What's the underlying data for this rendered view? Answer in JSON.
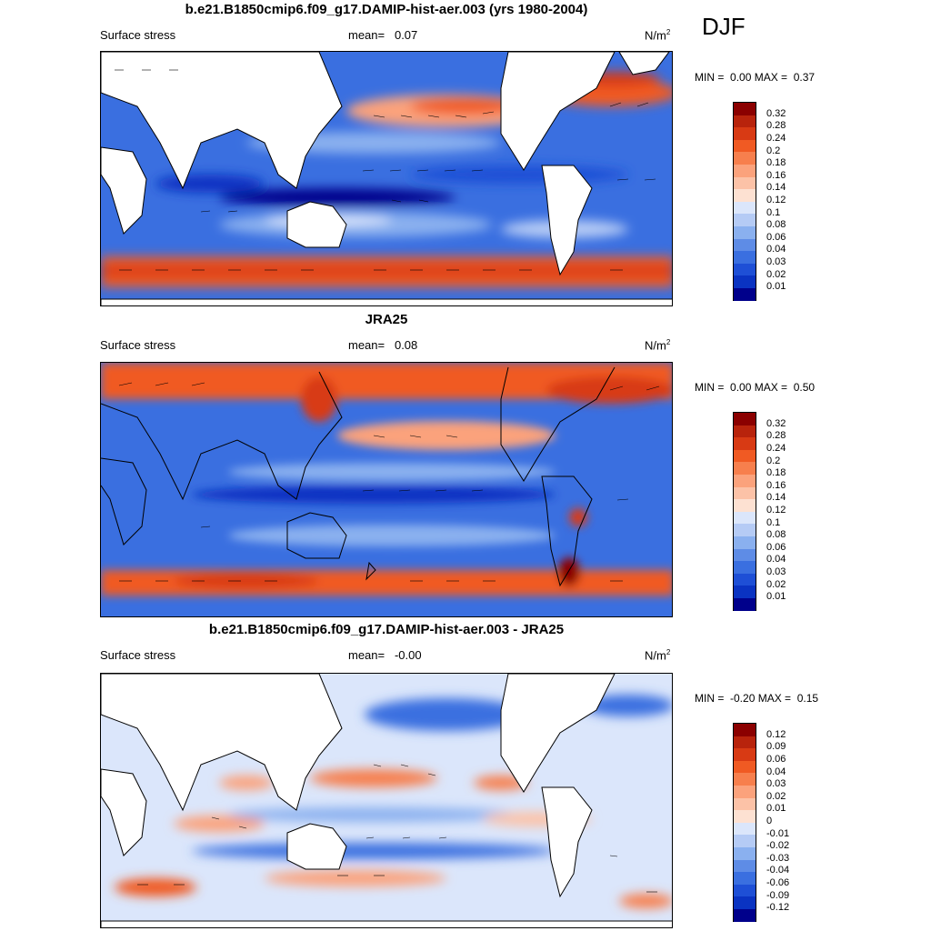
{
  "season": "DJF",
  "panels": [
    {
      "title": "b.e21.B1850cmip6.f09_g17.DAMIP-hist-aer.003 (yrs 1980-2004)",
      "variable": "Surface stress",
      "mean_label": "mean=",
      "mean_value": "0.07",
      "unit_base": "N/m",
      "unit_exp": "2",
      "min_label": "MIN =",
      "min_value": "0.00",
      "max_label": "MAX =",
      "max_value": "0.37",
      "levels": [
        "0.32",
        "0.28",
        "0.24",
        "0.2",
        "0.18",
        "0.16",
        "0.14",
        "0.12",
        "0.1",
        "0.08",
        "0.06",
        "0.04",
        "0.03",
        "0.02",
        "0.01"
      ],
      "colors": [
        "#8b0000",
        "#b8230c",
        "#d83a14",
        "#f05a23",
        "#f77f4d",
        "#fba27c",
        "#fcc2a7",
        "#fde1d2",
        "#dbe6fb",
        "#b5cbf5",
        "#8ab0ef",
        "#5e8ce6",
        "#3a6fe0",
        "#1e4fd6",
        "#0a33c2",
        "#00008b"
      ]
    },
    {
      "title": "JRA25",
      "variable": "Surface stress",
      "mean_label": "mean=",
      "mean_value": "0.08",
      "unit_base": "N/m",
      "unit_exp": "2",
      "min_label": "MIN =",
      "min_value": "0.00",
      "max_label": "MAX =",
      "max_value": "0.50",
      "levels": [
        "0.32",
        "0.28",
        "0.24",
        "0.2",
        "0.18",
        "0.16",
        "0.14",
        "0.12",
        "0.1",
        "0.08",
        "0.06",
        "0.04",
        "0.03",
        "0.02",
        "0.01"
      ],
      "colors": [
        "#8b0000",
        "#b8230c",
        "#d83a14",
        "#f05a23",
        "#f77f4d",
        "#fba27c",
        "#fcc2a7",
        "#fde1d2",
        "#dbe6fb",
        "#b5cbf5",
        "#8ab0ef",
        "#5e8ce6",
        "#3a6fe0",
        "#1e4fd6",
        "#0a33c2",
        "#00008b"
      ]
    },
    {
      "title": "b.e21.B1850cmip6.f09_g17.DAMIP-hist-aer.003 - JRA25",
      "variable": "Surface stress",
      "mean_label": "mean=",
      "mean_value": "-0.00",
      "unit_base": "N/m",
      "unit_exp": "2",
      "min_label": "MIN =",
      "min_value": "-0.20",
      "max_label": "MAX =",
      "max_value": "0.15",
      "levels": [
        "0.12",
        "0.09",
        "0.06",
        "0.04",
        "0.03",
        "0.02",
        "0.01",
        "0",
        "-0.01",
        "-0.02",
        "-0.03",
        "-0.04",
        "-0.06",
        "-0.09",
        "-0.12"
      ],
      "colors": [
        "#8b0000",
        "#b8230c",
        "#d83a14",
        "#f05a23",
        "#f77f4d",
        "#fba27c",
        "#fcc2a7",
        "#fde1d2",
        "#dbe6fb",
        "#b5cbf5",
        "#8ab0ef",
        "#5e8ce6",
        "#3a6fe0",
        "#1e4fd6",
        "#0a33c2",
        "#00008b"
      ]
    }
  ]
}
